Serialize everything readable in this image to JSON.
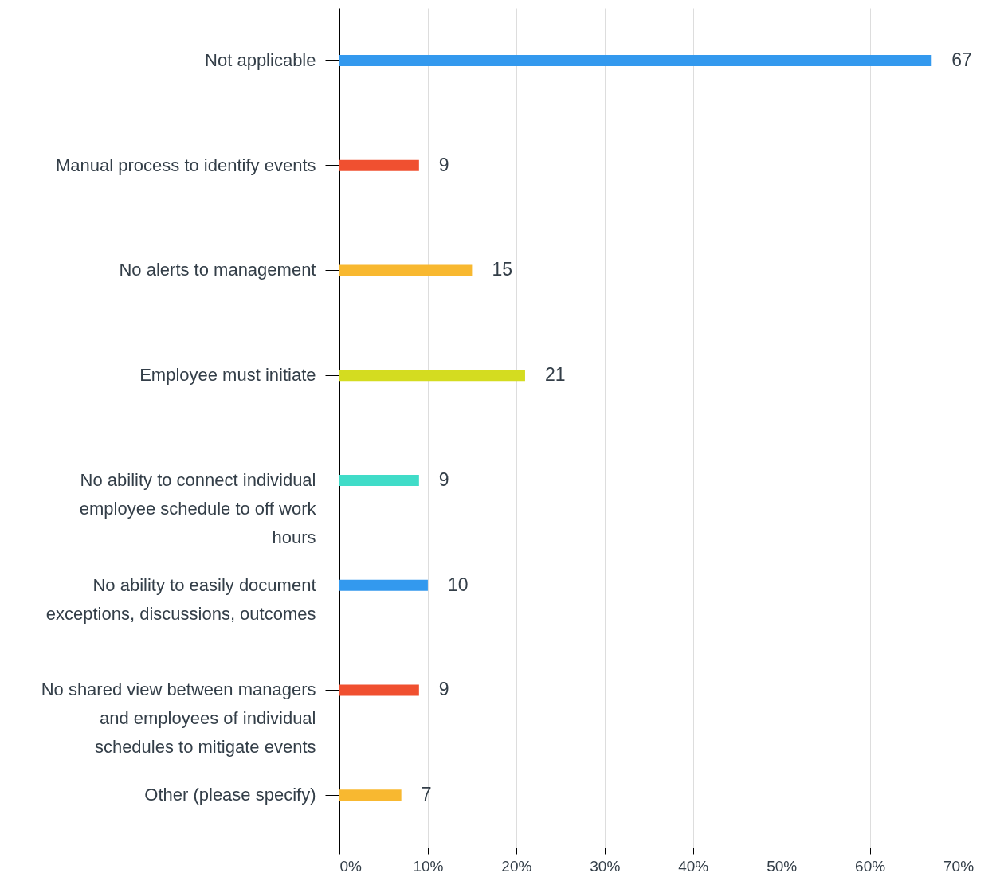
{
  "chart_data": {
    "type": "bar",
    "orientation": "horizontal",
    "categories": [
      "Not applicable",
      "Manual process to identify events",
      "No alerts to management",
      "Employee must initiate",
      "No ability to connect individual employee schedule to off work hours",
      "No ability to easily document exceptions, discussions, outcomes",
      "No shared view between managers and employees of individual schedules to mitigate events",
      "Other (please specify)"
    ],
    "values": [
      67,
      9,
      15,
      21,
      9,
      10,
      9,
      7
    ],
    "colors": [
      "#3399ee",
      "#f05030",
      "#f8b830",
      "#d4dc20",
      "#40dcc8",
      "#3399ee",
      "#f05030",
      "#f8b830"
    ],
    "data_labels": true,
    "xlim": [
      0,
      75
    ],
    "xticks": [
      {
        "value": 0,
        "label": "0%"
      },
      {
        "value": 10,
        "label": "10%"
      },
      {
        "value": 20,
        "label": "20%"
      },
      {
        "value": 30,
        "label": "30%"
      },
      {
        "value": 40,
        "label": "40%"
      },
      {
        "value": 50,
        "label": "50%"
      },
      {
        "value": 60,
        "label": "60%"
      },
      {
        "value": 70,
        "label": "70%"
      }
    ],
    "grid": "x"
  }
}
